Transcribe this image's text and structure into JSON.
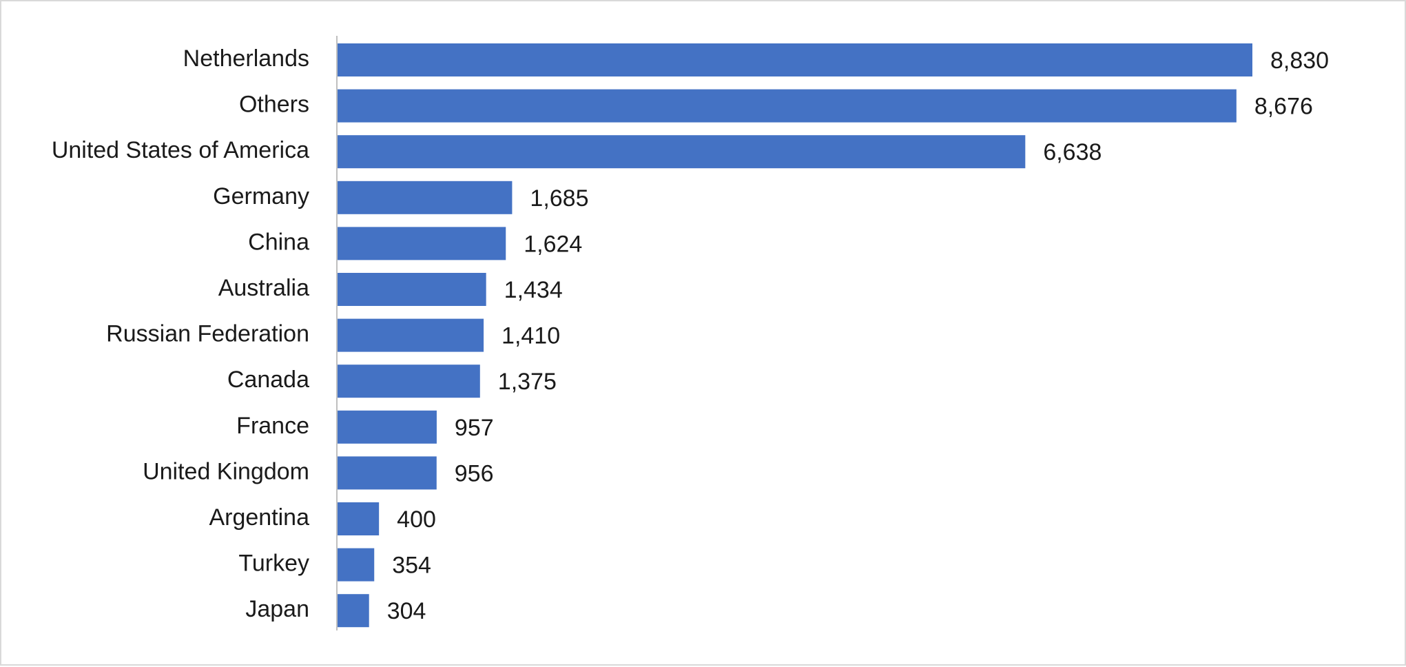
{
  "chart_data": {
    "type": "bar",
    "orientation": "horizontal",
    "title": "",
    "xlabel": "",
    "ylabel": "",
    "categories": [
      "Netherlands",
      "Others",
      "United States of America",
      "Germany",
      "China",
      "Australia",
      "Russian Federation",
      "Canada",
      "France",
      "United Kingdom",
      "Argentina",
      "Turkey",
      "Japan"
    ],
    "values": [
      8830,
      8676,
      6638,
      1685,
      1624,
      1434,
      1410,
      1375,
      957,
      956,
      400,
      354,
      304
    ],
    "value_labels": [
      "8,830",
      "8,676",
      "6,638",
      "1,685",
      "1,624",
      "1,434",
      "1,410",
      "1,375",
      "957",
      "956",
      "400",
      "354",
      "304"
    ],
    "xlim": [
      0,
      8830
    ],
    "grid": false,
    "legend": "none",
    "colors": {
      "bar": "#4472c4",
      "axis": "#bfbfbf",
      "text": "#1a1a1a"
    }
  }
}
